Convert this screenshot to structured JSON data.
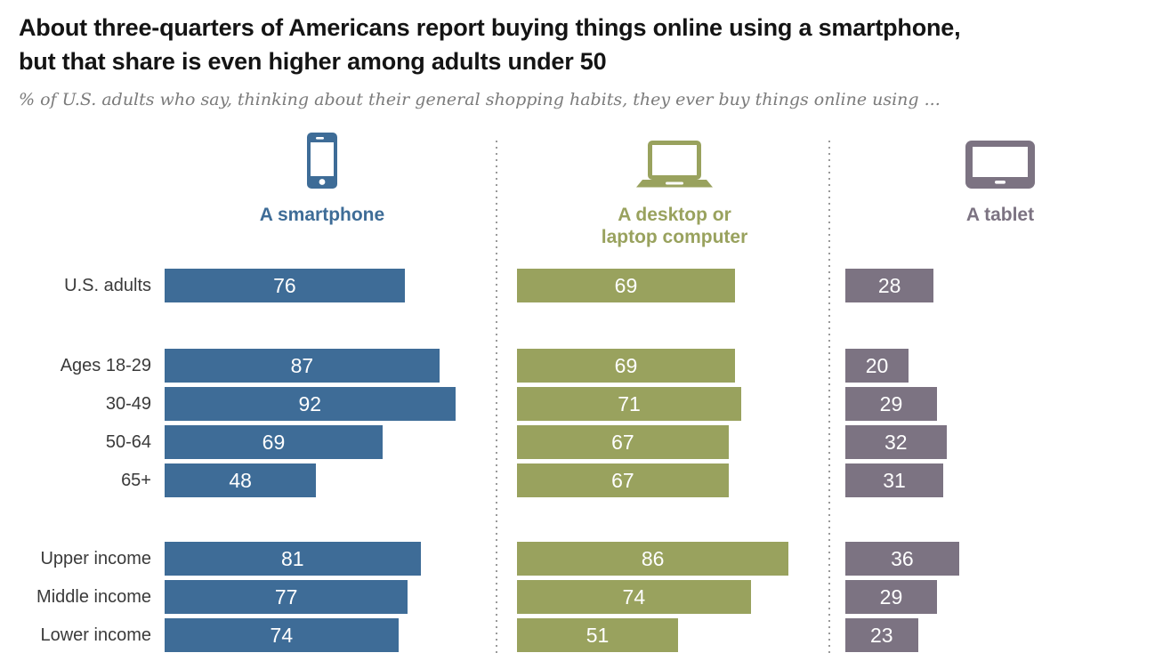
{
  "header": {
    "title_line1": "About three-quarters of Americans report buying things online using a smartphone,",
    "title_line2": "but that share is even higher among adults under 50",
    "subtitle": "% of U.S. adults who say, thinking about their general shopping habits, they ever buy things online using ..."
  },
  "colors": {
    "smartphone": "#3E6C97",
    "desktop": "#99A25E",
    "tablet": "#7C7382",
    "divider": "#9a9a9a",
    "value_text": "#ffffff"
  },
  "chart_data": {
    "type": "bar",
    "orientation": "horizontal",
    "value_unit": "percent",
    "xlim": [
      0,
      100
    ],
    "value_labels_shown": true,
    "categories": [
      "U.S. adults",
      "Ages 18-29",
      "30-49",
      "50-64",
      "65+",
      "Upper income",
      "Middle income",
      "Lower income"
    ],
    "row_groups": [
      {
        "rows": [
          "U.S. adults"
        ]
      },
      {
        "rows": [
          "Ages 18-29",
          "30-49",
          "50-64",
          "65+"
        ]
      },
      {
        "rows": [
          "Upper income",
          "Middle income",
          "Lower income"
        ]
      }
    ],
    "series": [
      {
        "key": "smartphone",
        "label": "A smartphone",
        "icon": "smartphone-icon",
        "color": "#3E6C97",
        "values": [
          76,
          87,
          92,
          69,
          48,
          81,
          77,
          74
        ]
      },
      {
        "key": "desktop",
        "label": "A desktop or\nlaptop computer",
        "icon": "laptop-icon",
        "color": "#99A25E",
        "values": [
          69,
          69,
          71,
          67,
          67,
          86,
          74,
          51
        ]
      },
      {
        "key": "tablet",
        "label": "A tablet",
        "icon": "tablet-icon",
        "color": "#7C7382",
        "values": [
          28,
          20,
          29,
          32,
          31,
          36,
          29,
          23
        ]
      }
    ]
  }
}
